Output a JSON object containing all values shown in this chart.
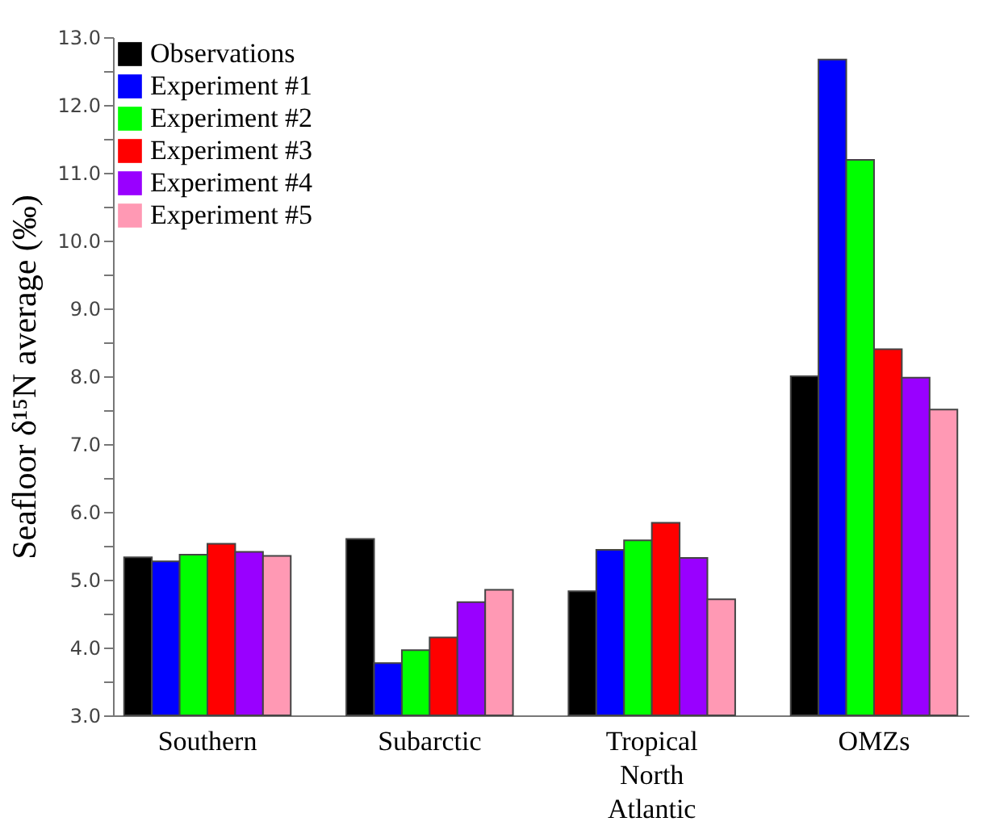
{
  "chart_data": {
    "type": "bar",
    "ylabel": "Seafloor δ¹⁵N average (‰)",
    "categories": [
      "Southern",
      "Subarctic",
      "Tropical North Atlantic",
      "OMZs"
    ],
    "series": [
      {
        "name": "Observations",
        "color": "#000000",
        "values": [
          5.33,
          5.6,
          4.83,
          8.0
        ]
      },
      {
        "name": "Experiment #1",
        "color": "#0000ff",
        "values": [
          5.27,
          3.77,
          5.44,
          12.67
        ]
      },
      {
        "name": "Experiment #2",
        "color": "#00ff00",
        "values": [
          5.37,
          3.96,
          5.58,
          11.19
        ]
      },
      {
        "name": "Experiment #3",
        "color": "#ff0000",
        "values": [
          5.53,
          4.15,
          5.84,
          8.4
        ]
      },
      {
        "name": "Experiment #4",
        "color": "#9900ff",
        "values": [
          5.41,
          4.67,
          5.32,
          7.98
        ]
      },
      {
        "name": "Experiment #5",
        "color": "#ff99b4",
        "values": [
          5.35,
          4.85,
          4.71,
          7.51
        ]
      }
    ],
    "ylim": [
      3,
      13
    ],
    "yticks": [
      {
        "value": 3,
        "label": "3.0"
      },
      {
        "value": 3.5,
        "label": null
      },
      {
        "value": 4,
        "label": "4.0"
      },
      {
        "value": 4.5,
        "label": null
      },
      {
        "value": 5,
        "label": "5.0"
      },
      {
        "value": 5.5,
        "label": null
      },
      {
        "value": 6,
        "label": "6.0"
      },
      {
        "value": 6.5,
        "label": null
      },
      {
        "value": 7,
        "label": "7.0"
      },
      {
        "value": 7.5,
        "label": null
      },
      {
        "value": 8,
        "label": "8.0"
      },
      {
        "value": 8.5,
        "label": null
      },
      {
        "value": 9,
        "label": "9.0"
      },
      {
        "value": 9.5,
        "label": null
      },
      {
        "value": 10,
        "label": "10.0"
      },
      {
        "value": 10.5,
        "label": null
      },
      {
        "value": 11,
        "label": "11.0"
      },
      {
        "value": 11.5,
        "label": null
      },
      {
        "value": 12,
        "label": "12.0"
      },
      {
        "value": 12.5,
        "label": null
      },
      {
        "value": 13,
        "label": "13.0"
      }
    ],
    "grid": false,
    "legend": "top left"
  }
}
